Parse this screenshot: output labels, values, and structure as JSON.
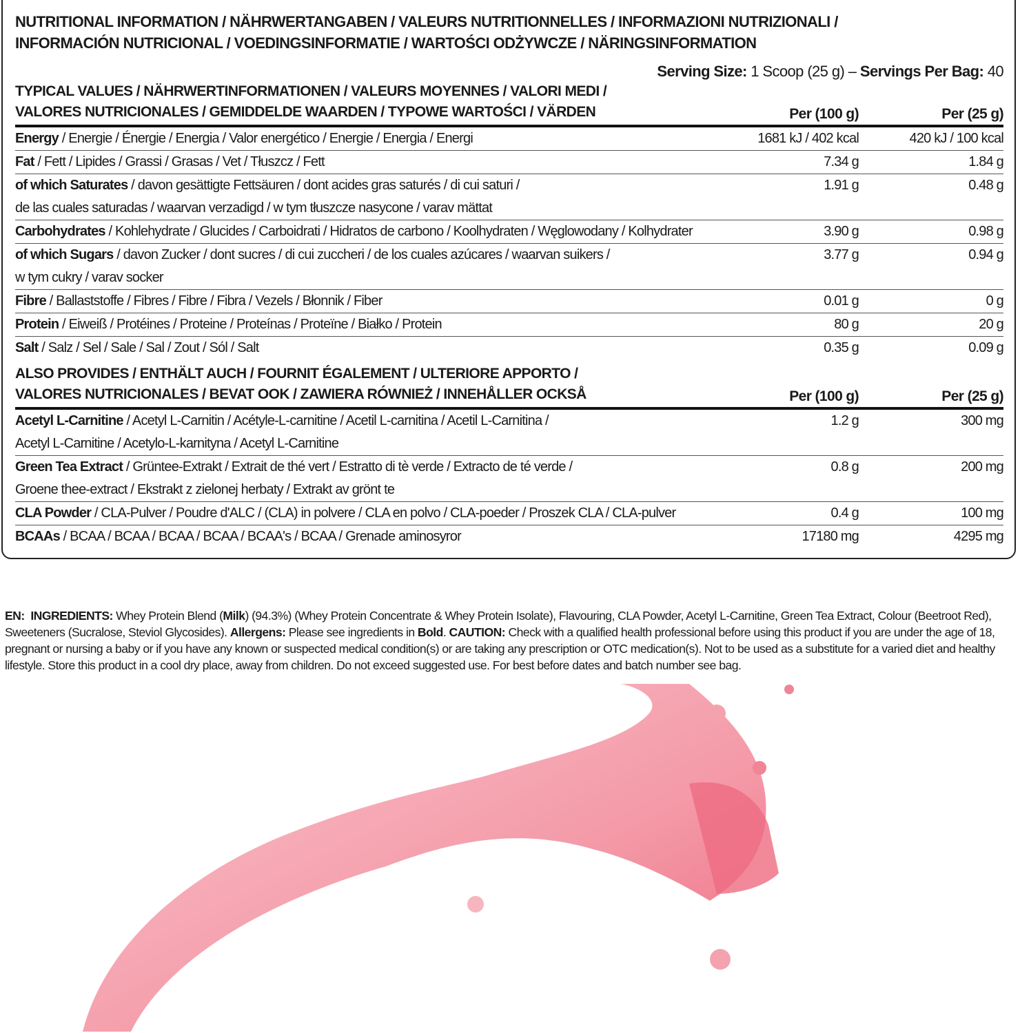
{
  "colors": {
    "splash": "#f27b8f",
    "splash_light": "#f9c3cb",
    "border": "#222222"
  },
  "title": [
    "NUTRITIONAL INFORMATION / NÄHRWERTANGABEN / VALEURS NUTRITIONNELLES / INFORMAZIONI NUTRIZIONALI /",
    "INFORMACIÓN NUTRICIONAL / VOEDINGSINFORMATIE / WARTOŚCI ODŻYWCZE / NÄRINGSINFORMATION"
  ],
  "serving": {
    "size_label": "Serving Size:",
    "size_value": "1 Scoop (25 g)",
    "sep": "–",
    "per_bag_label": "Servings Per Bag:",
    "per_bag_value": "40"
  },
  "typical": {
    "heading": [
      "TYPICAL VALUES / NÄHRWERTINFORMATIONEN / VALEURS MOYENNES / VALORI MEDI /",
      "VALORES NUTRICIONALES / GEMIDDELDE WAARDEN / TYPOWE WARTOŚCI / VÄRDEN"
    ],
    "col1": "Per (100 g)",
    "col2": "Per (25 g)",
    "rows": [
      {
        "name": "Energy",
        "rest": [
          " / Energie / Énergie / Energia / Valor energético / Energie / Energia / Energi"
        ],
        "per100": "1681 kJ / 402 kcal",
        "per25": "420 kJ / 100 kcal"
      },
      {
        "name": "Fat",
        "rest": [
          " / Fett / Lipides / Grassi / Grasas / Vet / Tłuszcz / Fett"
        ],
        "per100": "7.34 g",
        "per25": "1.84 g"
      },
      {
        "name": "of which Saturates",
        "rest": [
          " / davon gesättigte Fettsäuren / dont acides gras saturés / di cui saturi /",
          "de las cuales saturadas / waarvan verzadigd / w tym tłuszcze nasycone / varav mättat"
        ],
        "per100": "1.91 g",
        "per25": "0.48 g"
      },
      {
        "name": "Carbohydrates",
        "rest": [
          " / Kohlehydrate / Glucides / Carboidrati / Hidratos de carbono / Koolhydraten / Węglowodany / Kolhydrater"
        ],
        "per100": "3.90 g",
        "per25": "0.98 g"
      },
      {
        "name": "of which Sugars",
        "rest": [
          " / davon Zucker / dont sucres / di cui zuccheri / de los cuales azúcares / waarvan suikers /",
          "w tym cukry / varav socker"
        ],
        "per100": "3.77 g",
        "per25": "0.94 g"
      },
      {
        "name": "Fibre",
        "rest": [
          " / Ballaststoffe / Fibres / Fibre / Fibra / Vezels / Błonnik / Fiber"
        ],
        "per100": "0.01 g",
        "per25": "0 g"
      },
      {
        "name": "Protein",
        "rest": [
          " / Eiweiß / Protéines / Proteine / Proteínas / Proteïne / Białko / Protein"
        ],
        "per100": "80 g",
        "per25": "20 g"
      },
      {
        "name": "Salt",
        "rest": [
          " / Salz / Sel / Sale / Sal / Zout / Sól / Salt"
        ],
        "per100": "0.35 g",
        "per25": "0.09 g"
      }
    ]
  },
  "also": {
    "heading": [
      "ALSO PROVIDES / ENTHÄLT AUCH / FOURNIT ÉGALEMENT / ULTERIORE APPORTO /",
      "VALORES NUTRICIONALES / BEVAT OOK / ZAWIERA RÓWNIEŻ / INNEHÅLLER OCKSÅ"
    ],
    "col1": "Per (100 g)",
    "col2": "Per (25 g)",
    "rows": [
      {
        "name": "Acetyl L-Carnitine",
        "rest": [
          " / Acetyl L-Carnitin / Acétyle-L-carnitine / Acetil L-carnitina / Acetil L-Carnitina /",
          "Acetyl L-Carnitine / Acetylo-L-karnityna / Acetyl L-Carnitine"
        ],
        "per100": "1.2 g",
        "per25": "300 mg"
      },
      {
        "name": "Green Tea Extract",
        "rest": [
          " / Grüntee-Extrakt / Extrait de thé vert / Estratto di tè verde / Extracto de té verde /",
          "Groene thee-extract / Ekstrakt z zielonej herbaty / Extrakt av grönt te"
        ],
        "per100": "0.8 g",
        "per25": "200 mg"
      },
      {
        "name": "CLA Powder",
        "rest": [
          " / CLA-Pulver / Poudre d'ALC / (CLA) in polvere / CLA en polvo / CLA-poeder / Proszek CLA / CLA-pulver"
        ],
        "per100": "0.4 g",
        "per25": "100 mg"
      },
      {
        "name": "BCAAs",
        "rest": [
          " / BCAA / BCAA / BCAA / BCAA / BCAA's / BCAA / Grenade aminosyror"
        ],
        "per100": "17180 mg",
        "per25": "4295 mg"
      }
    ]
  },
  "ingredients": {
    "lang": "EN:",
    "ingredients_label": "INGREDIENTS:",
    "text1": " Whey Protein Blend (",
    "milk": "Milk",
    "text2": ") (94.3%) (Whey Protein Concentrate & Whey Protein Isolate), Flavouring, CLA Powder, Acetyl L-Carnitine, Green Tea Extract, Colour (Beetroot Red), Sweeteners (Sucralose, Steviol Glycosides). ",
    "allergens_label": "Allergens:",
    "allergens_text": " Please see ingredients in ",
    "bold_word": "Bold",
    "text3": ". ",
    "caution_label": "CAUTION:",
    "caution_text": " Check with a qualified health professional before using this product if you are under the age of 18, pregnant or nursing a baby or if you have any known or suspected medical condition(s) or are taking any prescription or OTC medication(s). Not to be used as a substitute for a varied diet and healthy lifestyle. Store this product in a cool dry place, away from children. Do not exceed suggested use. For best before dates and batch number see bag."
  }
}
